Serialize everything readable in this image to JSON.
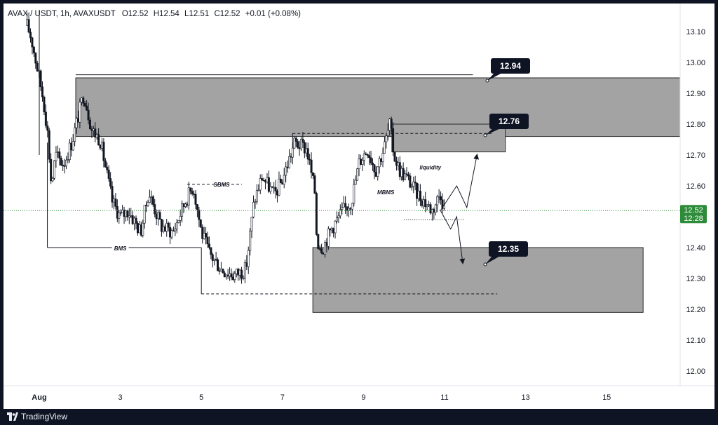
{
  "header": {
    "symbol": "AVAX / USDT, 1h, AVAXUSDT",
    "open": "O12.52",
    "high": "H12.54",
    "low": "L12.51",
    "close": "C12.52",
    "change": "+0.01 (+0.08%)"
  },
  "footer": {
    "brand": "TradingView"
  },
  "price_tag": {
    "price": "12.52",
    "countdown": "12:28",
    "color": "#2e8b3a"
  },
  "colors": {
    "zone_fill": "#a3a3a3",
    "zone_border": "#2a2a2a",
    "candle": "#131722",
    "label_bg": "#0f1424"
  },
  "chart_data": {
    "type": "candlestick",
    "symbol": "AVAXUSDT",
    "timeframe": "1h",
    "ylim": [
      11.95,
      13.17
    ],
    "y_ticks": [
      "13.10",
      "13.00",
      "12.90",
      "12.80",
      "12.70",
      "12.60",
      "12.50",
      "12.40",
      "12.30",
      "12.20",
      "12.10",
      "12.00"
    ],
    "x_ticks": [
      {
        "label": "Aug",
        "day": 1
      },
      {
        "label": "3",
        "day": 3
      },
      {
        "label": "5",
        "day": 5
      },
      {
        "label": "7",
        "day": 7
      },
      {
        "label": "9",
        "day": 9
      },
      {
        "label": "11",
        "day": 11
      },
      {
        "label": "13",
        "day": 13
      },
      {
        "label": "15",
        "day": 15
      }
    ],
    "price_path": [
      [
        0.7,
        13.12
      ],
      [
        0.8,
        13.08
      ],
      [
        1.0,
        12.95
      ],
      [
        1.1,
        12.88
      ],
      [
        1.2,
        12.78
      ],
      [
        1.3,
        12.6
      ],
      [
        1.4,
        12.7
      ],
      [
        1.6,
        12.67
      ],
      [
        1.8,
        12.74
      ],
      [
        2.1,
        12.9
      ],
      [
        2.3,
        12.78
      ],
      [
        2.5,
        12.75
      ],
      [
        2.8,
        12.55
      ],
      [
        3.0,
        12.5
      ],
      [
        3.2,
        12.52
      ],
      [
        3.5,
        12.45
      ],
      [
        3.7,
        12.58
      ],
      [
        4.0,
        12.47
      ],
      [
        4.3,
        12.45
      ],
      [
        4.6,
        12.55
      ],
      [
        4.8,
        12.6
      ],
      [
        5.0,
        12.45
      ],
      [
        5.2,
        12.38
      ],
      [
        5.5,
        12.33
      ],
      [
        5.8,
        12.31
      ],
      [
        6.1,
        12.33
      ],
      [
        6.3,
        12.55
      ],
      [
        6.5,
        12.63
      ],
      [
        6.8,
        12.57
      ],
      [
        7.0,
        12.62
      ],
      [
        7.3,
        12.74
      ],
      [
        7.6,
        12.72
      ],
      [
        7.8,
        12.58
      ],
      [
        7.85,
        12.42
      ],
      [
        8.0,
        12.4
      ],
      [
        8.2,
        12.46
      ],
      [
        8.5,
        12.52
      ],
      [
        8.7,
        12.55
      ],
      [
        8.9,
        12.68
      ],
      [
        9.1,
        12.72
      ],
      [
        9.3,
        12.65
      ],
      [
        9.5,
        12.72
      ],
      [
        9.65,
        12.8
      ],
      [
        9.75,
        12.7
      ],
      [
        9.9,
        12.65
      ],
      [
        10.1,
        12.62
      ],
      [
        10.3,
        12.58
      ],
      [
        10.5,
        12.55
      ],
      [
        10.7,
        12.52
      ],
      [
        10.9,
        12.58
      ],
      [
        11.0,
        12.52
      ]
    ],
    "zones": [
      {
        "name": "12.94",
        "top": 12.95,
        "bottom": 12.76,
        "start_day": 1.9,
        "end_day": 17.7
      },
      {
        "name": "12.76",
        "top": 12.8,
        "bottom": 12.71,
        "start_day": 9.7,
        "end_day": 12.5
      },
      {
        "name": "12.35",
        "top": 12.4,
        "bottom": 12.19,
        "start_day": 7.75,
        "end_day": 15.9
      }
    ],
    "annotations": [
      {
        "text": "BMS",
        "price": 12.4
      },
      {
        "text": "SBMS",
        "price": 12.6
      },
      {
        "text": "MBMS",
        "price": 12.58
      },
      {
        "text": "liquidity",
        "price": 12.66
      }
    ],
    "levels": [
      {
        "price": 12.96,
        "style": "solid",
        "start_day": 1.9,
        "end_day": 11.7
      },
      {
        "price": 12.77,
        "style": "dashed",
        "start_day": 7.25,
        "end_day": 12.2
      },
      {
        "price": 12.25,
        "style": "dashed",
        "start_day": 5.0,
        "end_day": 12.3
      },
      {
        "price": 12.49,
        "style": "dotted",
        "start_day": 10.0,
        "end_day": 11.5
      }
    ],
    "projected_path_up": [
      [
        10.9,
        12.52
      ],
      [
        11.3,
        12.6
      ],
      [
        11.55,
        12.53
      ],
      [
        11.8,
        12.7
      ]
    ],
    "projected_path_down": [
      [
        10.9,
        12.52
      ],
      [
        11.15,
        12.46
      ],
      [
        11.3,
        12.5
      ],
      [
        11.45,
        12.35
      ]
    ]
  }
}
